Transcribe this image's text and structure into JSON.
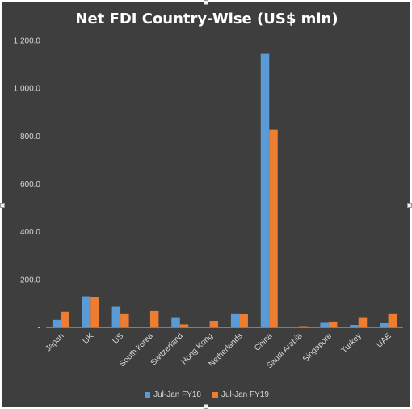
{
  "chart_data": {
    "type": "bar",
    "title": "Net FDI Country-Wise (US$ mln)",
    "categories": [
      "Japan",
      "UK",
      "US",
      "South korea",
      "Switzerland",
      "Hong Kong",
      "Netherlands",
      "China",
      "Saudi Arabia",
      "Singapore",
      "Turkey",
      "UAE"
    ],
    "series": [
      {
        "name": "Jul-Jan FY18",
        "color": "#5b9bd5",
        "values": [
          31,
          130,
          86,
          0,
          42,
          1,
          58,
          1144,
          0,
          22,
          10,
          18
        ]
      },
      {
        "name": "Jul-Jan FY19",
        "color": "#ed7d31",
        "values": [
          65,
          125,
          58,
          68,
          12,
          27,
          55,
          826,
          5,
          24,
          42,
          58
        ]
      }
    ],
    "yticks": [
      "-",
      "200.0",
      "400.0",
      "600.0",
      "800.0",
      "1,000.0",
      "1,200.0"
    ],
    "ylim": [
      0,
      1200
    ],
    "grid": false,
    "legend_position": "bottom"
  }
}
